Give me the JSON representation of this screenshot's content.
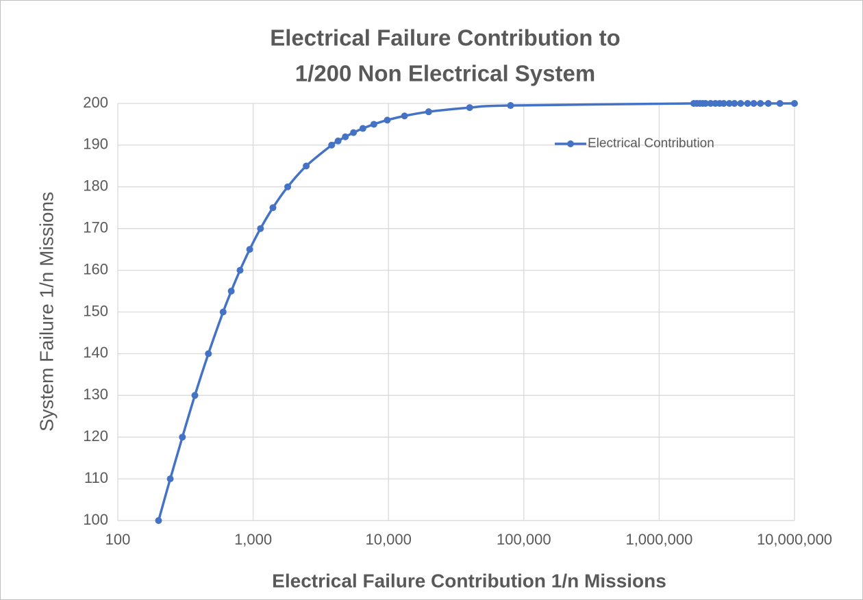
{
  "chart_data": {
    "type": "line",
    "title": [
      "Electrical Failure Contribution to",
      "1/200 Non Electrical System"
    ],
    "x_label": "Electrical Failure Contribution 1/n Missions",
    "y_label": "System Failure 1/n Missions",
    "x_scale": "log",
    "grid": true,
    "legend": "upper right",
    "xlim": [
      100,
      10000000
    ],
    "xticks": [
      100,
      {
        "value": 1000,
        "label": "1,000"
      },
      {
        "value": 10000,
        "label": "10,000"
      },
      {
        "value": 100000,
        "label": "100,000"
      },
      {
        "value": 1000000,
        "label": "1,000,000"
      },
      {
        "value": 10000000,
        "label": "10,000,000"
      }
    ],
    "ylim": [
      100,
      200
    ],
    "yticks": [
      100,
      110,
      120,
      130,
      140,
      150,
      160,
      170,
      180,
      190,
      200
    ],
    "series": [
      {
        "name": "Electrical Contribution",
        "color": "#4472c4",
        "x": [
          200,
          244,
          300,
          371,
          467,
          600,
          689,
          800,
          943,
          1133,
          1400,
          1800,
          2467,
          3800,
          4244,
          4800,
          5514,
          6467,
          7800,
          9800,
          13133,
          19800,
          39800,
          79800,
          1800000,
          1900000,
          2000000,
          2100000,
          2200000,
          2400000,
          2600000,
          2800000,
          3000000,
          3300000,
          3600000,
          4000000,
          4500000,
          5000000,
          5600000,
          6400000,
          7800000,
          10000000
        ],
        "values": [
          100,
          110,
          120,
          130,
          140,
          150,
          155,
          160,
          165,
          170,
          175,
          180,
          185,
          190,
          191,
          192,
          193,
          194,
          195,
          196,
          197,
          198,
          199,
          199.5,
          200,
          200,
          200,
          200,
          200,
          200,
          200,
          200,
          200,
          200,
          200,
          200,
          200,
          200,
          200,
          200,
          200,
          200
        ]
      }
    ]
  }
}
